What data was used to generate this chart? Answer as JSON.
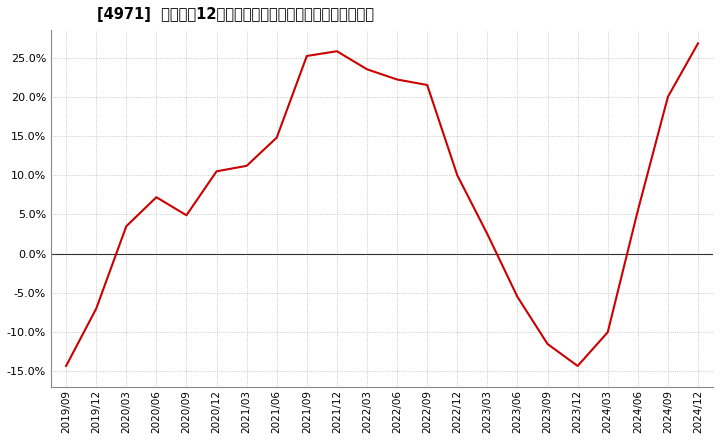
{
  "title": "[4971]  売上高の12か月移動合計の対前年同期増減率の推移",
  "line_color": "#cc0000",
  "background_color": "#ffffff",
  "grid_color": "#aaaaaa",
  "zero_line_color": "#333333",
  "ylim": [
    -0.17,
    0.285
  ],
  "yticks": [
    -0.15,
    -0.1,
    -0.05,
    0.0,
    0.05,
    0.1,
    0.15,
    0.2,
    0.25
  ],
  "dates": [
    "2019/09",
    "2019/12",
    "2020/03",
    "2020/06",
    "2020/09",
    "2020/12",
    "2021/03",
    "2021/06",
    "2021/09",
    "2021/12",
    "2022/03",
    "2022/06",
    "2022/09",
    "2022/12",
    "2023/03",
    "2023/06",
    "2023/09",
    "2023/12",
    "2024/03",
    "2024/06",
    "2024/09",
    "2024/12"
  ],
  "values": [
    -0.143,
    -0.07,
    0.035,
    0.072,
    0.049,
    0.105,
    0.112,
    0.148,
    0.252,
    0.258,
    0.235,
    0.222,
    0.215,
    0.1,
    0.025,
    -0.055,
    -0.115,
    -0.143,
    -0.1,
    0.055,
    0.2,
    0.268
  ]
}
